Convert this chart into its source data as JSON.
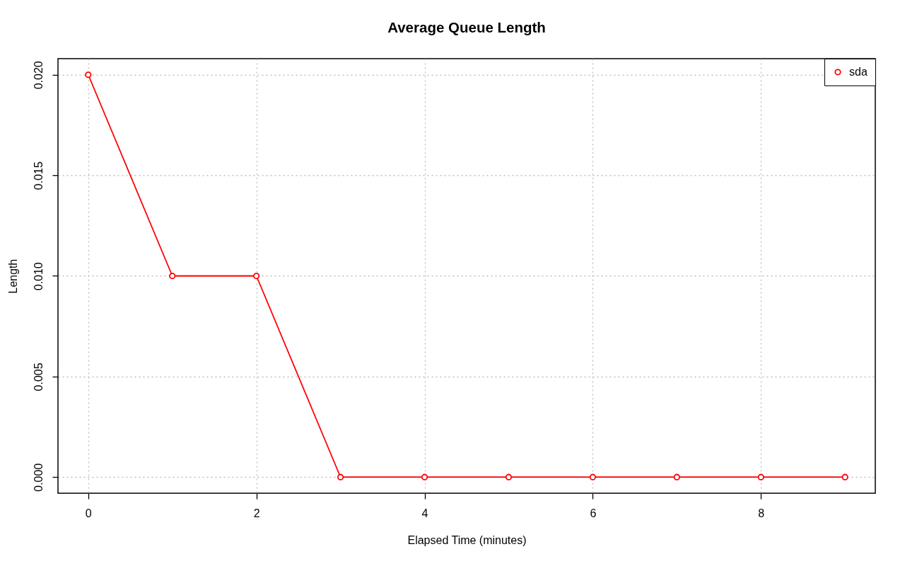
{
  "chart_data": {
    "type": "line",
    "title": "Average Queue Length",
    "xlabel": "Elapsed Time (minutes)",
    "ylabel": "Length",
    "x": [
      0,
      1,
      2,
      3,
      4,
      5,
      6,
      7,
      8,
      9
    ],
    "series": [
      {
        "name": "sda",
        "color": "#ff0000",
        "values": [
          0.02,
          0.01,
          0.01,
          0,
          0,
          0,
          0,
          0,
          0,
          0
        ]
      }
    ],
    "xlim": [
      -0.36,
      9.36
    ],
    "ylim": [
      -0.0008,
      0.0208
    ],
    "xticks": [
      0,
      2,
      4,
      6,
      8
    ],
    "yticks": [
      {
        "value": 0,
        "label": "0.000"
      },
      {
        "value": 0.005,
        "label": "0.005"
      },
      {
        "value": 0.01,
        "label": "0.010"
      },
      {
        "value": 0.015,
        "label": "0.015"
      },
      {
        "value": 0.02,
        "label": "0.020"
      }
    ],
    "grid": true,
    "legend": "top right",
    "marker": "circle",
    "line_style": "solid"
  }
}
